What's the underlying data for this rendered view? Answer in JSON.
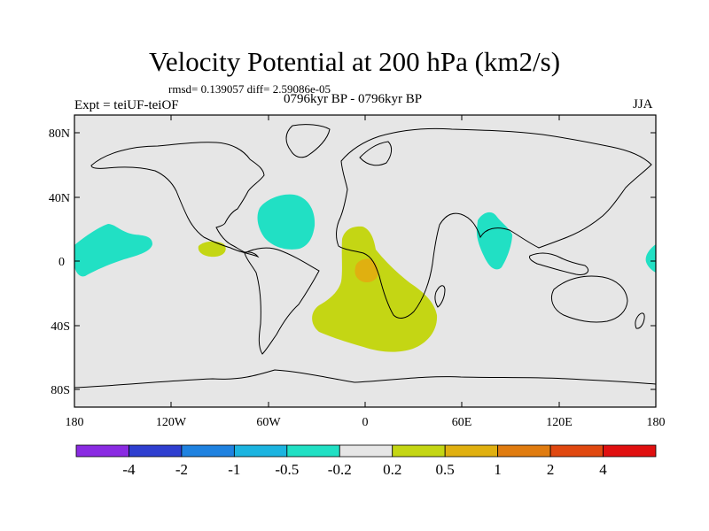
{
  "title": "Velocity Potential at 200 hPa (km2/s)",
  "stats": "rmsd= 0.139057  diff= 2.59086e-05",
  "left_label": "Expt = teiUF-teiOF",
  "center_label": "0796kyr BP - 0796kyr BP",
  "right_label": "JJA",
  "map": {
    "background_color": "#e6e6e6",
    "lat_ticks": [
      "80N",
      "40N",
      "0",
      "40S",
      "80S"
    ],
    "lon_ticks": [
      "180",
      "120W",
      "60W",
      "0",
      "60E",
      "120E",
      "180"
    ]
  },
  "colorbar": {
    "colors": [
      "#8a2be2",
      "#2f3fd0",
      "#1f82e0",
      "#1cb4e0",
      "#21e0c4",
      "#e6e6e6",
      "#c4d614",
      "#e0b010",
      "#e07c10",
      "#e04810",
      "#e01010"
    ],
    "levels": [
      "-4",
      "-2",
      "-1",
      "-0.5",
      "-0.2",
      "0.2",
      "0.5",
      "1",
      "2",
      "4"
    ]
  }
}
